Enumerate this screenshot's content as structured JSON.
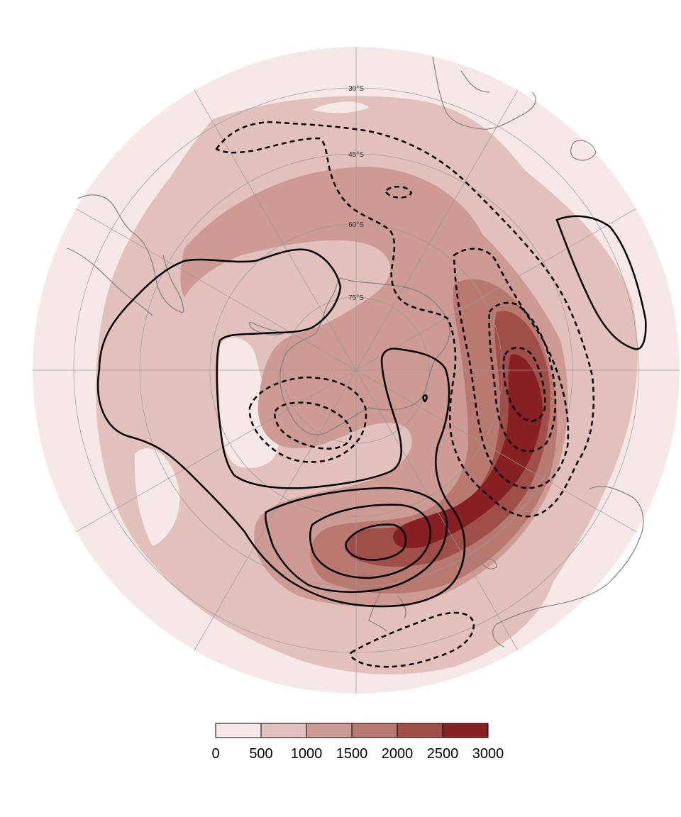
{
  "map": {
    "projection": "south-polar-stereographic",
    "latitude_circles": [
      {
        "label": "30°S"
      },
      {
        "label": "45°S"
      },
      {
        "label": "60°S"
      },
      {
        "label": "75°S"
      }
    ],
    "meridians_deg": [
      0,
      30,
      60,
      90,
      120,
      150,
      180,
      210,
      240,
      270,
      300,
      330
    ]
  },
  "colorbar": {
    "ticks": [
      "0",
      "500",
      "1000",
      "1500",
      "2000",
      "2500",
      "3000"
    ],
    "colors": [
      "#f5e8e7",
      "#e2c1bd",
      "#cd9a94",
      "#b77970",
      "#9f4e48",
      "#862023"
    ]
  },
  "contours": {
    "positive_style": "solid",
    "negative_style": "dashed",
    "color": "#000000"
  },
  "colors": {
    "coastline": "#808080",
    "gridline": "#999999",
    "background": "#ffffff"
  }
}
